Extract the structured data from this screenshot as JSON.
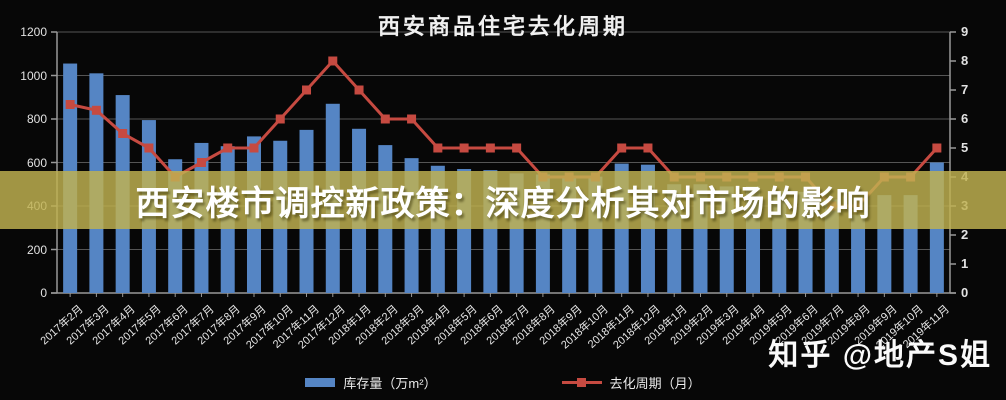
{
  "title": "西安商品住宅去化周期",
  "banner": {
    "text": "西安楼市调控新政策：深度分析其对市场的影响"
  },
  "watermark": "知乎 @地产S姐",
  "colors": {
    "background": "#070707",
    "bar": "#5585c4",
    "line": "#c64a41",
    "banner_overlay": "rgba(193,178,80,0.83)",
    "grid": "#555555",
    "axis": "#999999",
    "label": "#e2e2e2"
  },
  "legend": {
    "items": [
      {
        "label": "库存量（万m²）",
        "type": "bar"
      },
      {
        "label": "去化周期（月）",
        "type": "line"
      }
    ]
  },
  "chart_data": {
    "type": "bar",
    "title": "西安商品住宅去化周期",
    "categories": [
      "2017年2月",
      "2017年3月",
      "2017年4月",
      "2017年5月",
      "2017年6月",
      "2017年7月",
      "2017年8月",
      "2017年9月",
      "2017年10月",
      "2017年11月",
      "2017年12月",
      "2018年1月",
      "2018年2月",
      "2018年3月",
      "2018年4月",
      "2018年5月",
      "2018年6月",
      "2018年7月",
      "2018年8月",
      "2018年9月",
      "2018年10月",
      "2018年11月",
      "2018年12月",
      "2019年1月",
      "2019年2月",
      "2019年3月",
      "2019年4月",
      "2019年5月",
      "2019年6月",
      "2019年7月",
      "2019年8月",
      "2019年9月",
      "2019年10月",
      "2019年11月"
    ],
    "series": [
      {
        "name": "库存量（万m²）",
        "type": "bar",
        "axis": "left",
        "values": [
          1055,
          1010,
          910,
          795,
          615,
          690,
          675,
          720,
          700,
          750,
          870,
          755,
          680,
          620,
          585,
          570,
          565,
          550,
          545,
          540,
          535,
          595,
          590,
          500,
          500,
          490,
          490,
          470,
          465,
          430,
          360,
          450,
          450,
          600
        ]
      },
      {
        "name": "去化周期（月）",
        "type": "line",
        "axis": "right",
        "values": [
          6.5,
          6.3,
          5.5,
          5,
          4,
          4.5,
          5,
          5,
          6,
          7,
          8,
          7,
          6,
          6,
          5,
          5,
          5,
          5,
          4,
          4,
          4,
          5,
          5,
          4,
          4,
          4,
          4,
          4,
          4,
          3,
          3,
          4,
          4,
          5
        ]
      }
    ],
    "left_axis": {
      "min": 0,
      "max": 1200,
      "step": 200
    },
    "right_axis": {
      "min": 0,
      "max": 9,
      "step": 1
    },
    "grid": true,
    "legend_position": "bottom"
  }
}
